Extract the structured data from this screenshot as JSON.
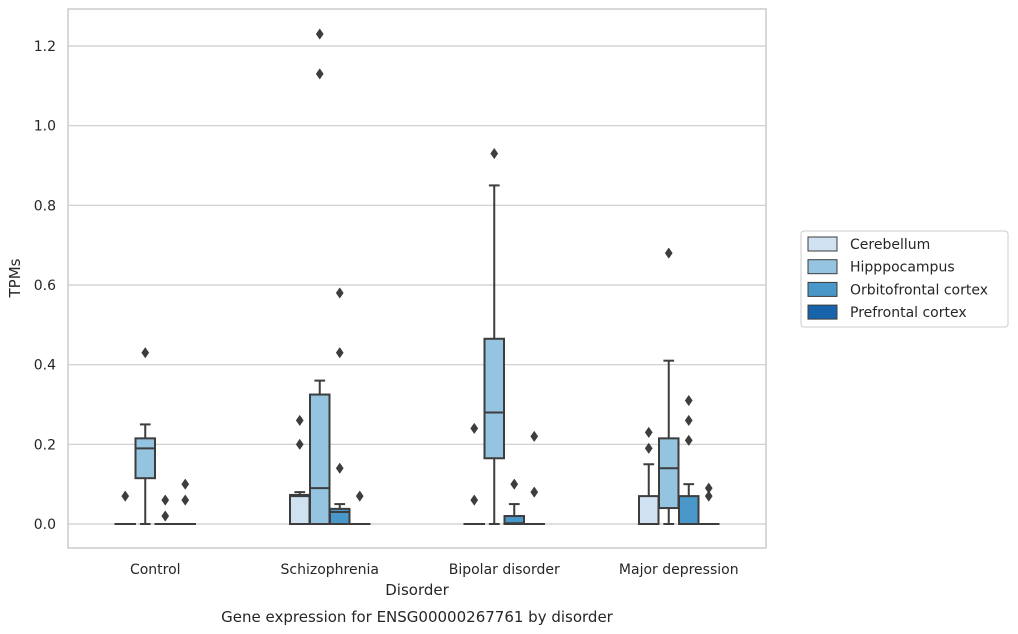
{
  "chart_data": {
    "type": "box",
    "title": "",
    "xlabel": "Disorder",
    "ylabel": "TPMs",
    "caption": "Gene expression for ENSG00000267761 by disorder",
    "ylim": [
      -0.06,
      1.29
    ],
    "yticks": [
      0.0,
      0.2,
      0.4,
      0.6,
      0.8,
      1.0,
      1.2
    ],
    "ytick_labels": [
      "0.0",
      "0.2",
      "0.4",
      "0.6",
      "0.8",
      "1.0",
      "1.2"
    ],
    "grid": "horizontal",
    "legend_placement": "right",
    "categories": [
      "Control",
      "Schizophrenia",
      "Bipolar disorder",
      "Major depression"
    ],
    "series": [
      {
        "name": "Cerebellum",
        "color": "#d0e1f2",
        "boxes": [
          {
            "q1": 0,
            "median": 0,
            "q3": 0,
            "whisker_low": 0,
            "whisker_high": 0,
            "outliers": [
              0.07
            ]
          },
          {
            "q1": 0,
            "median": 0.07,
            "q3": 0.073,
            "whisker_low": 0,
            "whisker_high": 0.08,
            "outliers": [
              0.2,
              0.26
            ]
          },
          {
            "q1": 0,
            "median": 0,
            "q3": 0,
            "whisker_low": 0,
            "whisker_high": 0,
            "outliers": [
              0.06,
              0.24
            ]
          },
          {
            "q1": 0,
            "median": 0,
            "q3": 0.07,
            "whisker_low": 0,
            "whisker_high": 0.15,
            "outliers": [
              0.19,
              0.23
            ]
          }
        ]
      },
      {
        "name": "Hipppocampus",
        "color": "#94c4df",
        "boxes": [
          {
            "q1": 0.115,
            "median": 0.19,
            "q3": 0.215,
            "whisker_low": 0,
            "whisker_high": 0.25,
            "outliers": [
              0.43
            ]
          },
          {
            "q1": 0,
            "median": 0.09,
            "q3": 0.325,
            "whisker_low": 0,
            "whisker_high": 0.36,
            "outliers": [
              1.13,
              1.23
            ]
          },
          {
            "q1": 0.165,
            "median": 0.28,
            "q3": 0.465,
            "whisker_low": 0,
            "whisker_high": 0.85,
            "outliers": [
              0.93
            ]
          },
          {
            "q1": 0.04,
            "median": 0.14,
            "q3": 0.215,
            "whisker_low": 0,
            "whisker_high": 0.41,
            "outliers": [
              0.68
            ]
          }
        ]
      },
      {
        "name": "Orbitofrontal cortex",
        "color": "#4a98c9",
        "boxes": [
          {
            "q1": 0,
            "median": 0,
            "q3": 0,
            "whisker_low": 0,
            "whisker_high": 0,
            "outliers": [
              0.02,
              0.06
            ]
          },
          {
            "q1": 0,
            "median": 0.03,
            "q3": 0.038,
            "whisker_low": 0,
            "whisker_high": 0.05,
            "outliers": [
              0.14,
              0.43,
              0.58
            ]
          },
          {
            "q1": 0,
            "median": 0.002,
            "q3": 0.02,
            "whisker_low": 0,
            "whisker_high": 0.05,
            "outliers": [
              0.1
            ]
          },
          {
            "q1": 0,
            "median": 0,
            "q3": 0.07,
            "whisker_low": 0,
            "whisker_high": 0.1,
            "outliers": [
              0.21,
              0.26,
              0.31
            ]
          }
        ]
      },
      {
        "name": "Prefrontal cortex",
        "color": "#1764ab",
        "boxes": [
          {
            "q1": 0,
            "median": 0,
            "q3": 0,
            "whisker_low": 0,
            "whisker_high": 0,
            "outliers": [
              0.06,
              0.1
            ]
          },
          {
            "q1": 0,
            "median": 0,
            "q3": 0,
            "whisker_low": 0,
            "whisker_high": 0,
            "outliers": [
              0.07
            ]
          },
          {
            "q1": 0,
            "median": 0,
            "q3": 0,
            "whisker_low": 0,
            "whisker_high": 0,
            "outliers": [
              0.08,
              0.22
            ]
          },
          {
            "q1": 0,
            "median": 0,
            "q3": 0,
            "whisker_low": 0,
            "whisker_high": 0,
            "outliers": [
              0.07,
              0.09
            ]
          }
        ]
      }
    ]
  }
}
